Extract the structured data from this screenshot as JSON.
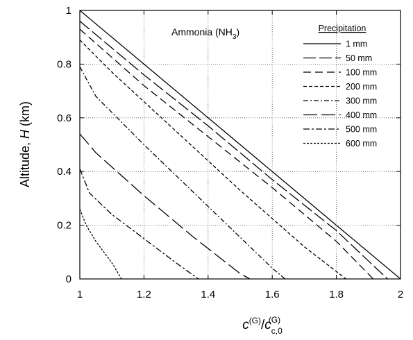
{
  "chart_data": {
    "type": "line",
    "annotation": {
      "text": "Ammonia (NH",
      "sub": "3",
      "close": ")"
    },
    "xlabel": {
      "main": "c",
      "sup": "(G)",
      "sep": "/",
      "main2": "c",
      "sub2": "c,0",
      "sup2": "(G)"
    },
    "ylabel": {
      "prefix": "Altitude, ",
      "italic": "H",
      "suffix": " (km)"
    },
    "xlim": [
      1,
      2
    ],
    "ylim": [
      0,
      1
    ],
    "x_ticks": [
      "1",
      "1.2",
      "1.4",
      "1.6",
      "1.8",
      "2"
    ],
    "y_ticks": [
      "0",
      "0.2",
      "0.4",
      "0.6",
      "0.8",
      "1"
    ],
    "grid": true,
    "legend_title": "Precipitation",
    "legend_position": "top-right",
    "series": [
      {
        "name": "1 mm",
        "dash": "none",
        "points": [
          [
            1,
            1
          ],
          [
            1.2,
            0.8
          ],
          [
            1.4,
            0.6
          ],
          [
            1.6,
            0.4
          ],
          [
            1.8,
            0.2
          ],
          [
            2,
            0
          ]
        ]
      },
      {
        "name": "50 mm",
        "dash": "18 5",
        "points": [
          [
            1,
            0.96
          ],
          [
            1.2,
            0.76
          ],
          [
            1.4,
            0.57
          ],
          [
            1.6,
            0.37
          ],
          [
            1.8,
            0.18
          ],
          [
            1.915,
            0.05
          ],
          [
            1.96,
            0
          ]
        ]
      },
      {
        "name": "100 mm",
        "dash": "11 6",
        "points": [
          [
            1,
            0.93
          ],
          [
            1.2,
            0.72
          ],
          [
            1.4,
            0.53
          ],
          [
            1.6,
            0.34
          ],
          [
            1.8,
            0.14
          ],
          [
            1.915,
            0
          ]
        ]
      },
      {
        "name": "200 mm",
        "dash": "5 3",
        "points": [
          [
            1,
            0.89
          ],
          [
            1.1,
            0.77
          ],
          [
            1.3,
            0.55
          ],
          [
            1.5,
            0.33
          ],
          [
            1.7,
            0.12
          ],
          [
            1.83,
            0
          ]
        ]
      },
      {
        "name": "300 mm",
        "dash": "7 3 2 3",
        "points": [
          [
            1,
            0.79
          ],
          [
            1.05,
            0.68
          ],
          [
            1.2,
            0.5
          ],
          [
            1.4,
            0.27
          ],
          [
            1.6,
            0.04
          ],
          [
            1.64,
            0
          ]
        ]
      },
      {
        "name": "400 mm",
        "dash": "20 6",
        "points": [
          [
            1,
            0.54
          ],
          [
            1.05,
            0.47
          ],
          [
            1.2,
            0.31
          ],
          [
            1.35,
            0.16
          ],
          [
            1.5,
            0.02
          ],
          [
            1.53,
            0
          ]
        ]
      },
      {
        "name": "500 mm",
        "dash": "9 3 3 3",
        "points": [
          [
            1,
            0.41
          ],
          [
            1.03,
            0.32
          ],
          [
            1.1,
            0.24
          ],
          [
            1.2,
            0.15
          ],
          [
            1.3,
            0.06
          ],
          [
            1.37,
            0
          ]
        ]
      },
      {
        "name": "600 mm",
        "dash": "3 2",
        "points": [
          [
            1,
            0.26
          ],
          [
            1.02,
            0.2
          ],
          [
            1.05,
            0.14
          ],
          [
            1.1,
            0.06
          ],
          [
            1.13,
            0
          ]
        ]
      }
    ]
  }
}
